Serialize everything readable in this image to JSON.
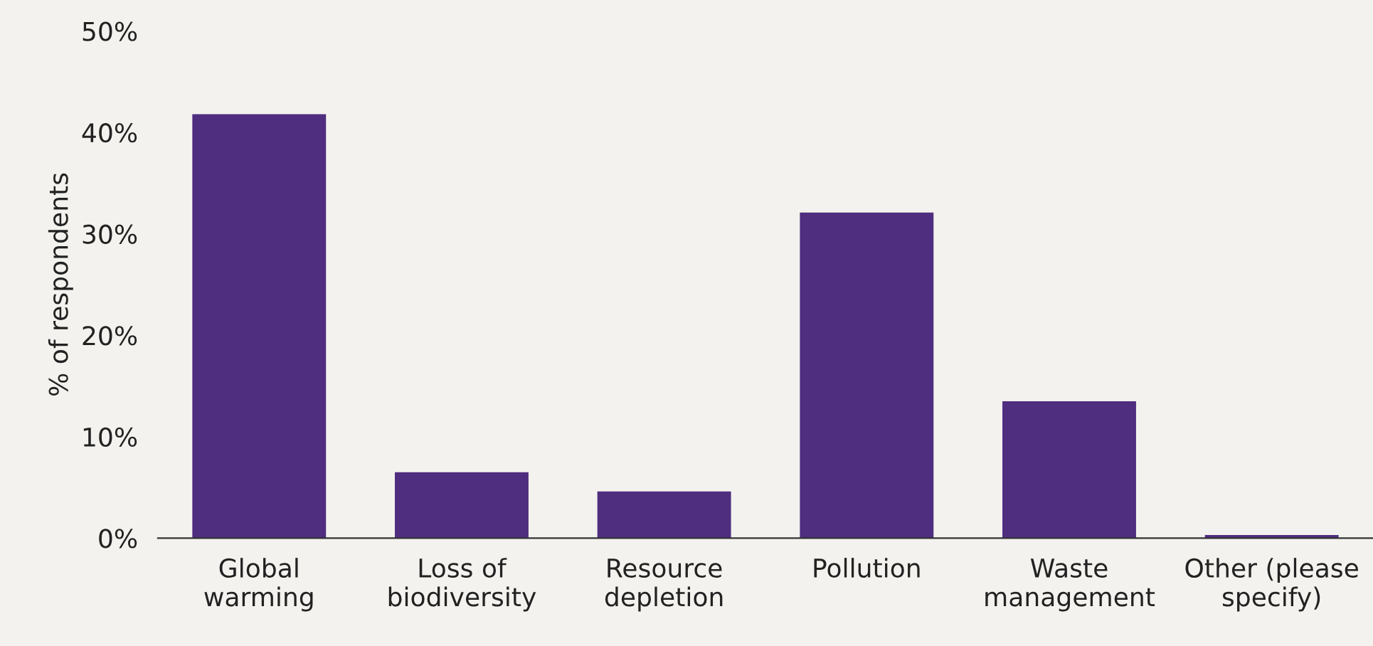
{
  "chart_data": {
    "type": "bar",
    "ylabel": "% of respondents",
    "categories": [
      "Global\nwarming",
      "Loss of\nbiodiversity",
      "Resource\ndepletion",
      "Pollution",
      "Waste\nmanagement",
      "Other (please\nspecify)"
    ],
    "values": [
      41.8,
      6.5,
      4.6,
      32.1,
      13.5,
      0.3
    ],
    "color": "#4f2d7f",
    "ylim": [
      0,
      50
    ],
    "yticks": [
      {
        "value": 0,
        "label": "0%"
      },
      {
        "value": 10,
        "label": "10%"
      },
      {
        "value": 20,
        "label": "20%"
      },
      {
        "value": 30,
        "label": "30%"
      },
      {
        "value": 40,
        "label": "40%"
      },
      {
        "value": 50,
        "label": "50%"
      }
    ],
    "grid": false,
    "legend": false
  }
}
